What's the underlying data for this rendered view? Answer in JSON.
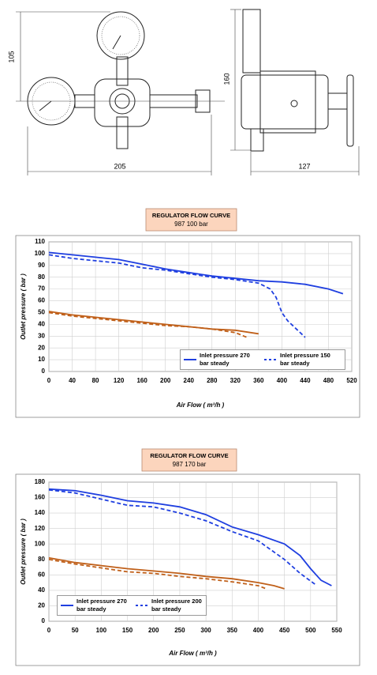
{
  "drawing": {
    "dimensions": [
      "105",
      "160",
      "205",
      "127"
    ]
  },
  "chart_data": [
    {
      "type": "line",
      "title": "REGULATOR FLOW CURVE",
      "subtitle": "987 100 bar",
      "x_label": "Air Flow ( m³/h )",
      "y_label": "Outlet pressure ( bar )",
      "xlim": [
        0,
        520
      ],
      "xticks": [
        0,
        40,
        80,
        120,
        160,
        200,
        240,
        280,
        320,
        360,
        400,
        440,
        480,
        520
      ],
      "ylim": [
        0,
        110
      ],
      "yticks": [
        0,
        10,
        20,
        30,
        40,
        50,
        60,
        70,
        80,
        90,
        100,
        110
      ],
      "grid": true,
      "legend": "lower right",
      "series": [
        {
          "name": "Inlet pressure 270 bar steady",
          "color": "#1f3fe0",
          "line_style": "solid",
          "x": [
            0,
            40,
            80,
            120,
            160,
            200,
            240,
            280,
            320,
            360,
            400,
            440,
            480,
            505
          ],
          "values": [
            101,
            99,
            97,
            95,
            91,
            87,
            84,
            81,
            79,
            77,
            76,
            74,
            70,
            66
          ]
        },
        {
          "name": "Inlet pressure 150 bar steady",
          "color": "#1f3fe0",
          "line_style": "dashed",
          "x": [
            0,
            40,
            80,
            120,
            160,
            200,
            240,
            280,
            320,
            360,
            380,
            390,
            400,
            410,
            425,
            440
          ],
          "values": [
            99,
            96,
            94,
            92,
            88,
            86,
            83,
            80,
            78,
            75,
            70,
            63,
            50,
            43,
            36,
            29
          ]
        },
        {
          "color": "#c0601a",
          "line_style": "solid",
          "x": [
            0,
            40,
            80,
            120,
            160,
            200,
            240,
            280,
            320,
            360
          ],
          "values": [
            51,
            48,
            46,
            44,
            42,
            40,
            38,
            36,
            35,
            32
          ]
        },
        {
          "color": "#c0601a",
          "line_style": "dashed",
          "x": [
            0,
            40,
            80,
            120,
            160,
            200,
            240,
            280,
            320,
            340
          ],
          "values": [
            50,
            47,
            45,
            43,
            41,
            39,
            38,
            36,
            33,
            29
          ]
        }
      ]
    },
    {
      "type": "line",
      "title": "REGULATOR FLOW CURVE",
      "subtitle": "987 170 bar",
      "x_label": "Air Flow ( m³/h )",
      "y_label": "Outlet pressure ( bar )",
      "xlim": [
        0,
        550
      ],
      "xticks": [
        0,
        50,
        100,
        150,
        200,
        250,
        300,
        350,
        400,
        450,
        500,
        550
      ],
      "ylim": [
        0,
        180
      ],
      "yticks": [
        0,
        20,
        40,
        60,
        80,
        100,
        120,
        140,
        160,
        180
      ],
      "grid": true,
      "legend": "lower left",
      "series": [
        {
          "name": "Inlet pressure 270 bar steady",
          "color": "#1f3fe0",
          "line_style": "solid",
          "x": [
            0,
            50,
            100,
            150,
            200,
            250,
            300,
            350,
            400,
            450,
            480,
            500,
            520,
            540
          ],
          "values": [
            171,
            169,
            163,
            156,
            153,
            148,
            138,
            122,
            112,
            100,
            85,
            68,
            53,
            46
          ]
        },
        {
          "name": "Inlet pressure 200 bar steady",
          "color": "#1f3fe0",
          "line_style": "dashed",
          "x": [
            0,
            50,
            100,
            150,
            200,
            250,
            300,
            350,
            400,
            450,
            480,
            510
          ],
          "values": [
            170,
            166,
            158,
            150,
            148,
            140,
            130,
            116,
            104,
            80,
            62,
            47
          ]
        },
        {
          "color": "#c0601a",
          "line_style": "solid",
          "x": [
            0,
            50,
            100,
            150,
            200,
            250,
            300,
            350,
            400,
            430,
            450
          ],
          "values": [
            82,
            76,
            72,
            68,
            65,
            62,
            58,
            55,
            50,
            46,
            42
          ]
        },
        {
          "color": "#c0601a",
          "line_style": "dashed",
          "x": [
            0,
            50,
            100,
            150,
            200,
            250,
            300,
            350,
            400,
            415
          ],
          "values": [
            80,
            74,
            69,
            64,
            62,
            58,
            55,
            51,
            46,
            42
          ]
        }
      ]
    }
  ]
}
